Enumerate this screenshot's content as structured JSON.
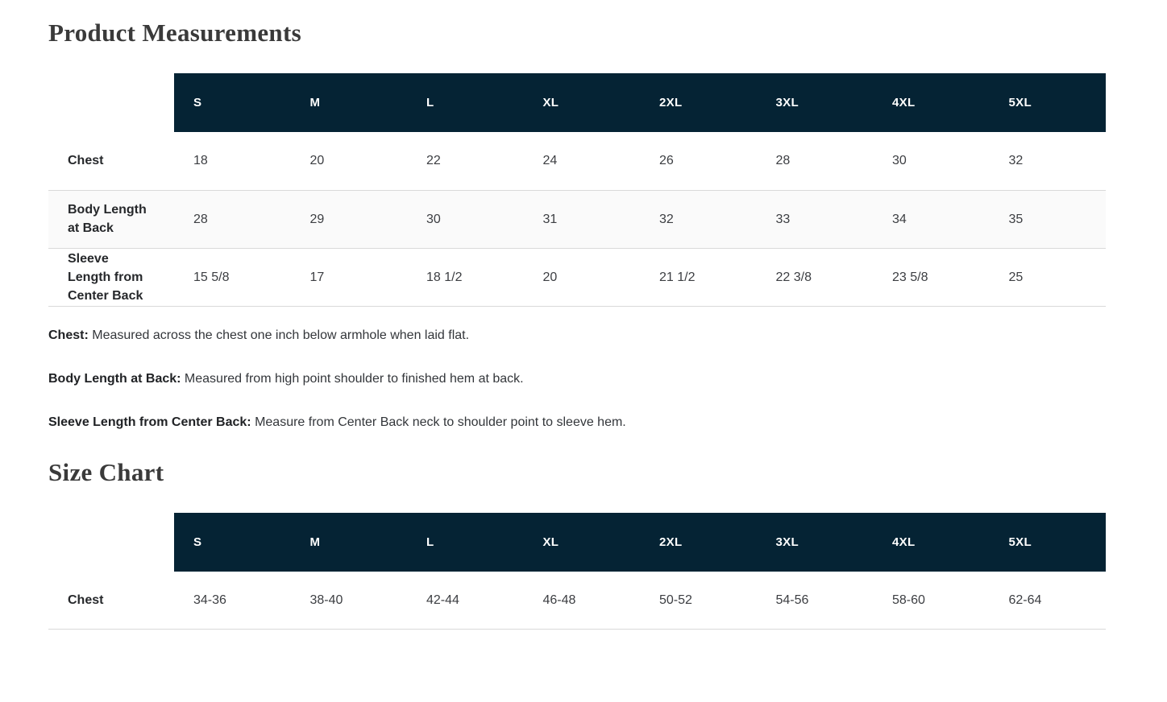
{
  "measurements": {
    "title": "Product Measurements",
    "table": {
      "sizes": [
        "S",
        "M",
        "L",
        "XL",
        "2XL",
        "3XL",
        "4XL",
        "5XL"
      ],
      "rows": [
        {
          "label": "Chest",
          "values": [
            "18",
            "20",
            "22",
            "24",
            "26",
            "28",
            "30",
            "32"
          ]
        },
        {
          "label": "Body Length at Back",
          "values": [
            "28",
            "29",
            "30",
            "31",
            "32",
            "33",
            "34",
            "35"
          ]
        },
        {
          "label": "Sleeve Length from Center Back",
          "values": [
            "15 5/8",
            "17",
            "18 1/2",
            "20",
            "21 1/2",
            "22 3/8",
            "23 5/8",
            "25"
          ]
        }
      ]
    },
    "definitions": [
      {
        "term": "Chest:",
        "text": "Measured across the chest one inch below armhole when laid flat."
      },
      {
        "term": "Body Length at Back:",
        "text": "Measured from high point shoulder to finished hem at back."
      },
      {
        "term": "Sleeve Length from Center Back:",
        "text": "Measure from Center Back neck to shoulder point to sleeve hem."
      }
    ]
  },
  "size_chart": {
    "title": "Size Chart",
    "table": {
      "sizes": [
        "S",
        "M",
        "L",
        "XL",
        "2XL",
        "3XL",
        "4XL",
        "5XL"
      ],
      "rows": [
        {
          "label": "Chest",
          "values": [
            "34-36",
            "38-40",
            "42-44",
            "46-48",
            "50-52",
            "54-56",
            "58-60",
            "62-64"
          ]
        }
      ]
    }
  },
  "colors": {
    "table_header_bg": "#052334",
    "table_header_text": "#ffffff",
    "stripe_row_bg": "#fafafa",
    "row_border": "#d9d9d9",
    "heading_text": "#3a3a3a",
    "label_text": "#26282b",
    "value_text": "#3c3e42",
    "page_bg": "#ffffff"
  }
}
